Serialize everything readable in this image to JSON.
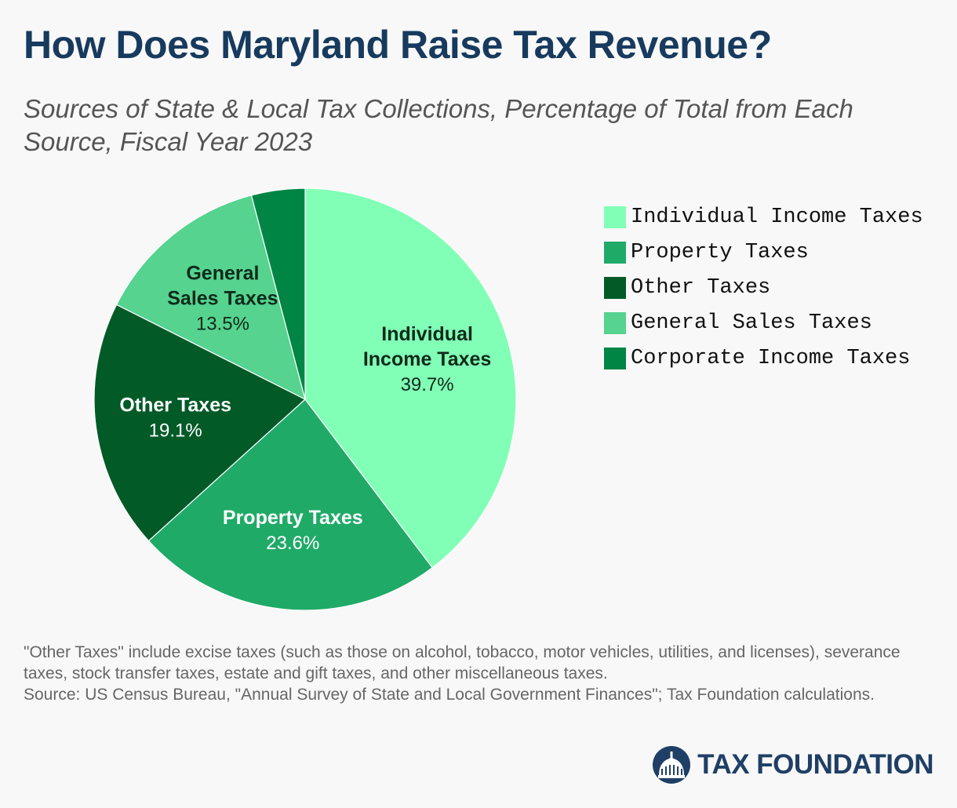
{
  "header": {
    "title": "How Does Maryland Raise Tax Revenue?",
    "subtitle": "Sources of State & Local Tax Collections, Percentage of Total from Each Source, Fiscal Year 2023"
  },
  "chart_data": {
    "type": "pie",
    "title": "How Does Maryland Raise Tax Revenue?",
    "subtitle": "Sources of State & Local Tax Collections, Percentage of Total from Each Source, Fiscal Year 2023",
    "legend_position": "right",
    "slices": [
      {
        "label": "Individual Income Taxes",
        "value": 39.7,
        "display": "39.7%",
        "color": "#82ffb6",
        "text_color": "#0d2a1a",
        "label_lines": [
          "Individual",
          "Income Taxes"
        ]
      },
      {
        "label": "Property Taxes",
        "value": 23.6,
        "display": "23.6%",
        "color": "#20aa68",
        "text_color": "#ffffff",
        "label_lines": [
          "Property Taxes"
        ]
      },
      {
        "label": "Other Taxes",
        "value": 19.1,
        "display": "19.1%",
        "color": "#025a27",
        "text_color": "#ffffff",
        "label_lines": [
          "Other Taxes"
        ]
      },
      {
        "label": "General Sales Taxes",
        "value": 13.5,
        "display": "13.5%",
        "color": "#55d38f",
        "text_color": "#0d2a1a",
        "label_lines": [
          "General",
          "Sales Taxes"
        ]
      },
      {
        "label": "Corporate Income Taxes",
        "value": 4.1,
        "display": "",
        "color": "#008545",
        "text_color": "#ffffff",
        "label_lines": []
      }
    ],
    "legend": [
      {
        "label": "Individual Income Taxes",
        "color": "#82ffb6"
      },
      {
        "label": "Property Taxes",
        "color": "#20aa68"
      },
      {
        "label": "Other Taxes",
        "color": "#025a27"
      },
      {
        "label": "General Sales Taxes",
        "color": "#55d38f"
      },
      {
        "label": "Corporate Income Taxes",
        "color": "#008545"
      }
    ]
  },
  "footnote": {
    "note": "\"Other Taxes\" include excise taxes (such as those on alcohol, tobacco, motor vehicles, utilities, and licenses), severance taxes, stock transfer taxes, estate and gift taxes, and other miscellaneous taxes.",
    "source": "Source: US Census Bureau, \"Annual Survey of State and Local Government Finances\"; Tax Foundation calculations."
  },
  "brand": {
    "name": "TAX FOUNDATION",
    "logo_icon": "capitol-dome-icon",
    "color": "#1f3f66"
  }
}
